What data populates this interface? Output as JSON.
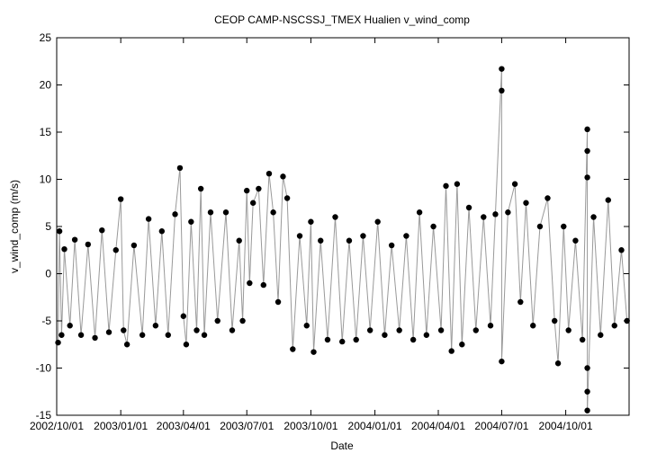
{
  "chart_data": {
    "type": "scatter",
    "title": "CEOP CAMP-NSCSSJ_TMEX Hualien  v_wind_comp",
    "xlabel": "Date",
    "ylabel": "v_wind_comp (m/s)",
    "xlim": [
      "2002-10-01",
      "2004-12-31"
    ],
    "ylim": [
      -15,
      25
    ],
    "x_ticks": [
      "2002/10/01",
      "2003/01/01",
      "2003/04/01",
      "2003/07/01",
      "2003/10/01",
      "2004/01/01",
      "2004/04/01",
      "2004/07/01",
      "2004/10/01"
    ],
    "y_ticks": [
      -15,
      -10,
      -5,
      0,
      5,
      10,
      15,
      20,
      25
    ],
    "grid": false,
    "legend": "none",
    "marker_color": "#000000",
    "connector_color": "#999999",
    "series": [
      {
        "points": [
          [
            "2002-10-03",
            -7.3
          ],
          [
            "2002-10-05",
            4.5
          ],
          [
            "2002-10-08",
            -6.5
          ],
          [
            "2002-10-12",
            2.6
          ],
          [
            "2002-10-20",
            -5.5
          ],
          [
            "2002-10-27",
            3.6
          ],
          [
            "2002-11-05",
            -6.5
          ],
          [
            "2002-11-15",
            3.1
          ],
          [
            "2002-11-25",
            -6.8
          ],
          [
            "2002-12-05",
            4.6
          ],
          [
            "2002-12-15",
            -6.2
          ],
          [
            "2002-12-25",
            2.5
          ],
          [
            "2003-01-01",
            7.9
          ],
          [
            "2003-01-05",
            -6.0
          ],
          [
            "2003-01-10",
            -7.5
          ],
          [
            "2003-01-20",
            3.0
          ],
          [
            "2003-02-01",
            -6.5
          ],
          [
            "2003-02-10",
            5.8
          ],
          [
            "2003-02-20",
            -5.5
          ],
          [
            "2003-03-01",
            4.5
          ],
          [
            "2003-03-10",
            -6.5
          ],
          [
            "2003-03-20",
            6.3
          ],
          [
            "2003-03-27",
            11.2
          ],
          [
            "2003-04-01",
            -4.5
          ],
          [
            "2003-04-05",
            -7.5
          ],
          [
            "2003-04-12",
            5.5
          ],
          [
            "2003-04-20",
            -6.0
          ],
          [
            "2003-04-26",
            9.0
          ],
          [
            "2003-05-01",
            -6.5
          ],
          [
            "2003-05-10",
            6.5
          ],
          [
            "2003-05-20",
            -5.0
          ],
          [
            "2003-06-01",
            6.5
          ],
          [
            "2003-06-10",
            -6.0
          ],
          [
            "2003-06-20",
            3.5
          ],
          [
            "2003-06-25",
            -5.0
          ],
          [
            "2003-07-01",
            8.8
          ],
          [
            "2003-07-05",
            -1.0
          ],
          [
            "2003-07-10",
            7.5
          ],
          [
            "2003-07-18",
            9.0
          ],
          [
            "2003-07-25",
            -1.2
          ],
          [
            "2003-08-02",
            10.6
          ],
          [
            "2003-08-08",
            6.5
          ],
          [
            "2003-08-15",
            -3.0
          ],
          [
            "2003-08-22",
            10.3
          ],
          [
            "2003-08-28",
            8.0
          ],
          [
            "2003-09-05",
            -8.0
          ],
          [
            "2003-09-15",
            4.0
          ],
          [
            "2003-09-25",
            -5.5
          ],
          [
            "2003-10-01",
            5.5
          ],
          [
            "2003-10-05",
            -8.3
          ],
          [
            "2003-10-15",
            3.5
          ],
          [
            "2003-10-25",
            -7.0
          ],
          [
            "2003-11-05",
            6.0
          ],
          [
            "2003-11-15",
            -7.2
          ],
          [
            "2003-11-25",
            3.5
          ],
          [
            "2003-12-05",
            -7.0
          ],
          [
            "2003-12-15",
            4.0
          ],
          [
            "2003-12-25",
            -6.0
          ],
          [
            "2004-01-05",
            5.5
          ],
          [
            "2004-01-15",
            -6.5
          ],
          [
            "2004-01-25",
            3.0
          ],
          [
            "2004-02-05",
            -6.0
          ],
          [
            "2004-02-15",
            4.0
          ],
          [
            "2004-02-25",
            -7.0
          ],
          [
            "2004-03-05",
            6.5
          ],
          [
            "2004-03-15",
            -6.5
          ],
          [
            "2004-03-25",
            5.0
          ],
          [
            "2004-04-05",
            -6.0
          ],
          [
            "2004-04-12",
            9.3
          ],
          [
            "2004-04-20",
            -8.2
          ],
          [
            "2004-04-28",
            9.5
          ],
          [
            "2004-05-05",
            -7.5
          ],
          [
            "2004-05-15",
            7.0
          ],
          [
            "2004-05-25",
            -6.0
          ],
          [
            "2004-06-05",
            6.0
          ],
          [
            "2004-06-15",
            -5.5
          ],
          [
            "2004-06-22",
            6.3
          ],
          [
            "2004-07-01",
            21.7
          ],
          [
            "2004-07-01",
            19.4
          ],
          [
            "2004-07-01",
            -9.3
          ],
          [
            "2004-07-10",
            6.5
          ],
          [
            "2004-07-20",
            9.5
          ],
          [
            "2004-07-28",
            -3.0
          ],
          [
            "2004-08-05",
            7.5
          ],
          [
            "2004-08-15",
            -5.5
          ],
          [
            "2004-08-25",
            5.0
          ],
          [
            "2004-09-05",
            8.0
          ],
          [
            "2004-09-15",
            -5.0
          ],
          [
            "2004-09-20",
            -9.5
          ],
          [
            "2004-09-28",
            5.0
          ],
          [
            "2004-10-05",
            -6.0
          ],
          [
            "2004-10-15",
            3.5
          ],
          [
            "2004-10-25",
            -7.0
          ],
          [
            "2004-11-01",
            15.3
          ],
          [
            "2004-11-01",
            13.0
          ],
          [
            "2004-11-01",
            10.2
          ],
          [
            "2004-11-01",
            -10.0
          ],
          [
            "2004-11-01",
            -12.5
          ],
          [
            "2004-11-01",
            -14.5
          ],
          [
            "2004-11-10",
            6.0
          ],
          [
            "2004-11-20",
            -6.5
          ],
          [
            "2004-12-01",
            7.8
          ],
          [
            "2004-12-10",
            -5.5
          ],
          [
            "2004-12-20",
            2.5
          ],
          [
            "2004-12-28",
            -5.0
          ]
        ]
      }
    ]
  }
}
